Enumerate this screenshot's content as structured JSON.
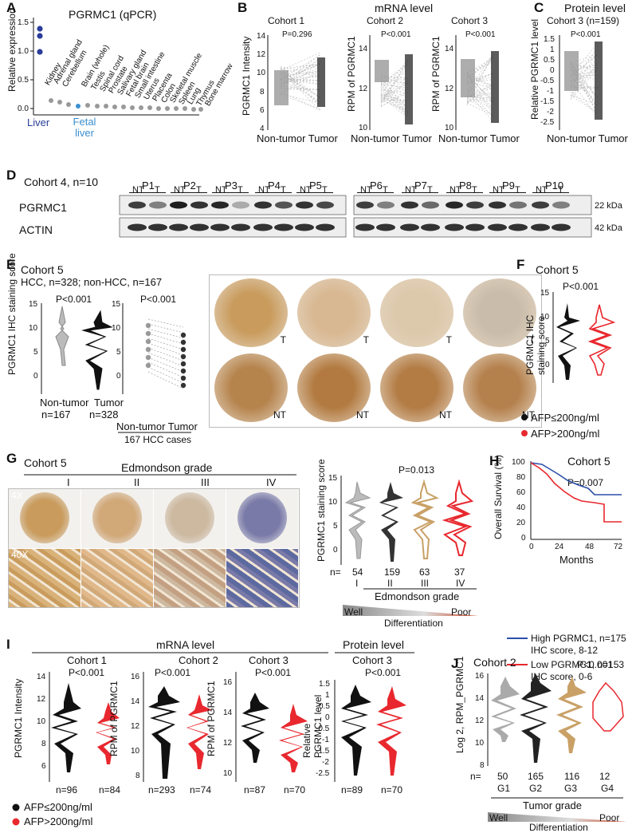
{
  "panels": {
    "A": {
      "letter": "A",
      "title": "PGRMC1 (qPCR)",
      "ylabel": "Relative expression",
      "ticks": [
        "0.0",
        "0.5",
        "1.0",
        "1.5"
      ],
      "liver": "Liver",
      "fetal": "Fetal liver",
      "tissues": [
        "Kidney",
        "Adrenal gland",
        "Cerebellum",
        "Brain (whole)",
        "Testis",
        "Spinal cord",
        "Prostate",
        "Salivary gland",
        "Fetal brain",
        "Small intestine",
        "Uterus",
        "Placenta",
        "Colon",
        "Skeletal muscle",
        "Spleen",
        "Lung",
        "Thymus",
        "Bone marrow"
      ]
    },
    "B": {
      "letter": "B",
      "header": "mRNA level",
      "c1": "Cohort 1",
      "c2": "Cohort 2",
      "c3": "Cohort 3",
      "p1": "P=0.296",
      "p2": "P<0.001",
      "p3": "P<0.001",
      "y1": "PGRMC1 Intensity",
      "y2": "RPM of  PGRMC1",
      "y3": "RPM of PGRMC1",
      "t1": [
        "14",
        "12",
        "10",
        "8",
        "6",
        "4"
      ],
      "t2": [
        "14",
        "12",
        "10"
      ],
      "t3": [
        "14",
        "12",
        "10"
      ],
      "x": "Non-tumor Tumor"
    },
    "C": {
      "letter": "C",
      "header": "Protein level",
      "sub": "Cohort 3 (n=159)",
      "p": "P<0.001",
      "y": "Relative PGRMC1 level",
      "ticks": [
        "1.5",
        "1",
        "0.5",
        "0",
        "-0.5",
        "-1",
        "-1.5",
        "-2",
        "-2.5"
      ],
      "x": "Non-tumor Tumor"
    },
    "D": {
      "letter": "D",
      "cohort": "Cohort 4, n=10",
      "patients": [
        "P1",
        "P2",
        "P3",
        "P4",
        "P5",
        "P6",
        "P7",
        "P8",
        "P9",
        "P10"
      ],
      "nt": "NT",
      "t": "T",
      "pgrmc1": "PGRMC1",
      "actin": "ACTIN",
      "kda22": "22 kDa",
      "kda42": "42 kDa"
    },
    "E": {
      "letter": "E",
      "cohort": "Cohort 5",
      "sub": "HCC, n=328; non-HCC, n=167",
      "p1": "P<0.001",
      "p2": "P<0.001",
      "y": "PGRMC1 IHC staining score",
      "ticks": [
        "15",
        "10",
        "5",
        "0"
      ],
      "x1": "Non-tumor",
      "x2": "Tumor",
      "n1": "n=167",
      "n2": "n=328",
      "x3": "Non-tumor Tumor",
      "cases": "167 HCC cases",
      "tlabel": "T",
      "ntlabel": "NT"
    },
    "F": {
      "letter": "F",
      "cohort": "Cohort 5",
      "p": "P<0.001",
      "y": "PGRMC1 IHC staining score",
      "ticks": [
        "15",
        "10",
        "5",
        "0"
      ],
      "leg1": "AFP≤200ng/ml",
      "leg2": "AFP>200ng/ml"
    },
    "G": {
      "letter": "G",
      "cohort": "Cohort 5",
      "grade": "Edmondson grade",
      "grades": [
        "I",
        "II",
        "III",
        "IV"
      ],
      "mag1": "4X",
      "mag2": "40X",
      "p": "P=0.013",
      "y": "PGRMC1 staining score",
      "ticks": [
        "15",
        "10",
        "5",
        "0"
      ],
      "nlabel": "n=",
      "ns": [
        "54",
        "159",
        "63",
        "37"
      ],
      "well": "Well",
      "poor": "Poor",
      "diff": "Differentiation"
    },
    "H": {
      "letter": "H",
      "cohort": "Cohort 5",
      "p": "P=0.007",
      "y": "Overall Survival (%)",
      "ticks": [
        "100",
        "80",
        "60",
        "40",
        "20",
        "0"
      ],
      "xticks": [
        "0",
        "24",
        "48",
        "72"
      ],
      "x": "Months",
      "high1": "High PGRMC1, n=175",
      "high2": "IHC score, 8-12",
      "low1": "Low PGRMC1, n=153",
      "low2": "IHC score, 0-6"
    },
    "I": {
      "letter": "I",
      "header": "mRNA level",
      "header2": "Protein level",
      "c1": "Cohort 1",
      "c2": "Cohort 2",
      "c3": "Cohort 3",
      "c4": "Cohort 3",
      "p": "P<0.001",
      "y1": "PGRMC1 Intensity",
      "y2": "RPM of  PGRMC1",
      "y3": "RPM of PGRMC1",
      "y4": "Relative PGRMC1 level",
      "t1": [
        "14",
        "12",
        "10",
        "8",
        "6"
      ],
      "t2": [
        "16",
        "14",
        "12",
        "10",
        "8"
      ],
      "t3": [
        "16",
        "14",
        "12",
        "10"
      ],
      "t4": [
        "1.5",
        "1",
        "0.5",
        "0",
        "-0.5",
        "-1",
        "-1.5",
        "-2",
        "-2.5"
      ],
      "n1": [
        "n=96",
        "n=84"
      ],
      "n2": [
        "n=293",
        "n=74"
      ],
      "n3": [
        "n=87",
        "n=70"
      ],
      "n4": [
        "n=89",
        "n=70"
      ],
      "leg1": "AFP≤200ng/ml",
      "leg2": "AFP>200ng/ml"
    },
    "J": {
      "letter": "J",
      "cohort": "Cohort 2",
      "p": "P<0.001",
      "y": "Log 2, RPM_PGRMC1",
      "ticks": [
        "16",
        "14",
        "12",
        "10",
        "8"
      ],
      "nlabel": "n=",
      "ns": [
        "50",
        "165",
        "116",
        "12"
      ],
      "gs": [
        "G1",
        "G2",
        "G3",
        "G4"
      ],
      "grade": "Tumor grade",
      "well": "Well",
      "poor": "Poor",
      "diff": "Differentiation"
    }
  },
  "colors": {
    "dark": "#111111",
    "red": "#e8282e",
    "gray": "#9a9a9a",
    "blue": "#2b4fa8",
    "gold": "#c9a066",
    "liverBlue": "#2a3d9a",
    "fetalBlue": "#3a8fd0"
  }
}
